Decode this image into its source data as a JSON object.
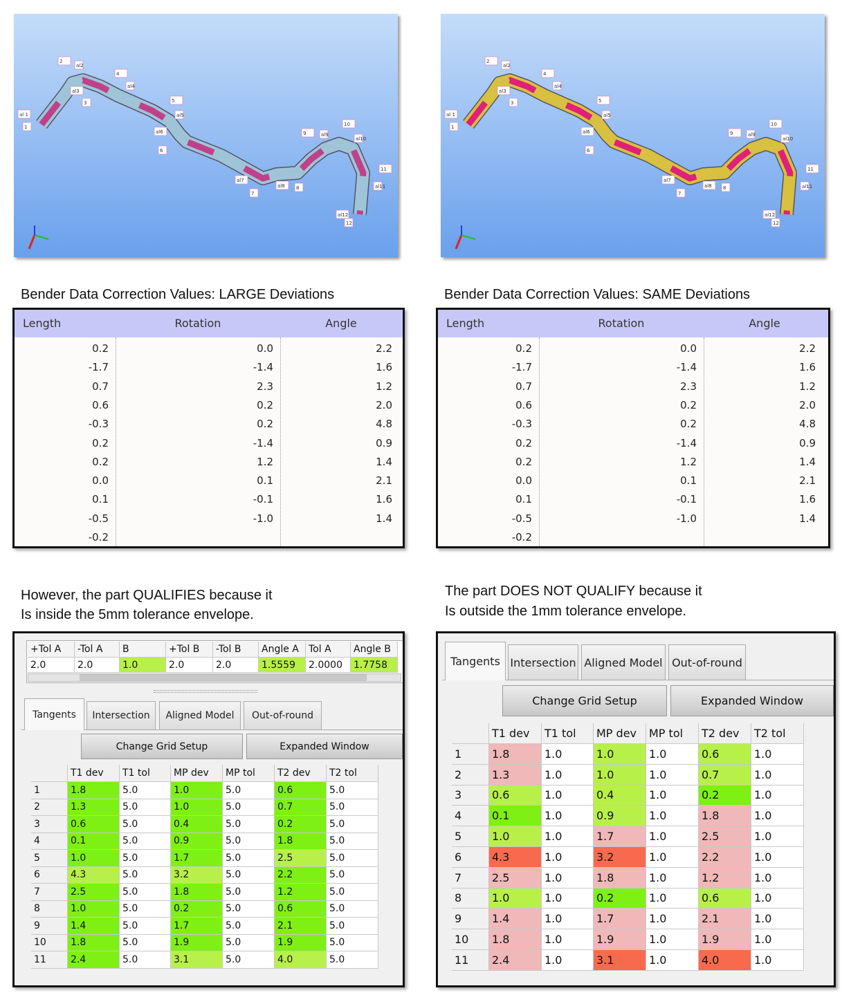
{
  "panels": [
    {
      "view": {
        "labels": [
          "al 1",
          "1",
          "2",
          "al2",
          "al3",
          "3",
          "4",
          "al4",
          "5",
          "al5",
          "al6",
          "6",
          "al7",
          "7",
          "al8",
          "8",
          "9",
          "al9",
          "10",
          "al10",
          "11",
          "al11",
          "al12",
          "12"
        ]
      },
      "caption": "Bender Data Correction Values: LARGE Deviations",
      "corrections": {
        "columns": [
          "Length",
          "Rotation",
          "Angle"
        ],
        "rows": [
          [
            "0.2",
            "0.0",
            "2.2"
          ],
          [
            "-1.7",
            "-1.4",
            "1.6"
          ],
          [
            "0.7",
            "2.3",
            "1.2"
          ],
          [
            "0.6",
            "0.2",
            "2.0"
          ],
          [
            "-0.3",
            "0.2",
            "4.8"
          ],
          [
            "0.2",
            "-1.4",
            "0.9"
          ],
          [
            "0.2",
            "1.2",
            "1.4"
          ],
          [
            "0.0",
            "0.1",
            "2.1"
          ],
          [
            "0.1",
            "-0.1",
            "1.6"
          ],
          [
            "-0.5",
            "-1.0",
            "1.4"
          ],
          [
            "-0.2"
          ]
        ]
      },
      "note": [
        "However, the part QUALIFIES because it",
        "Is inside the 5mm tolerance envelope."
      ],
      "tolerance_strip": {
        "columns": [
          "+Tol A",
          "-Tol A",
          "B",
          "+Tol B",
          "-Tol B",
          "Angle A",
          "Tol A",
          "Angle B"
        ],
        "values": [
          "2.0",
          "2.0",
          "1.0",
          "2.0",
          "2.0",
          "1.5559",
          "2.0000",
          "1.7758"
        ],
        "colors": [
          "#ffffff",
          "#ffffff",
          "#b8f04a",
          "#ffffff",
          "#ffffff",
          "#b8f04a",
          "#ffffff",
          "#b8f04a"
        ]
      },
      "grid": {
        "tabs": [
          "Tangents",
          "Intersection",
          "Aligned Model",
          "Out-of-round"
        ],
        "buttons": [
          "Change Grid Setup",
          "Expanded Window"
        ],
        "columns": [
          "T1 dev",
          "T1 tol",
          "MP dev",
          "MP tol",
          "T2 dev",
          "T2 tol"
        ],
        "rows": [
          {
            "label": "1",
            "cells": [
              "1.8",
              "5.0",
              "1.0",
              "5.0",
              "0.6",
              "5.0"
            ],
            "colors": [
              "#7ef014",
              "#ffffff",
              "#7ef014",
              "#ffffff",
              "#7ef014",
              "#ffffff"
            ]
          },
          {
            "label": "2",
            "cells": [
              "1.3",
              "5.0",
              "1.0",
              "5.0",
              "0.7",
              "5.0"
            ],
            "colors": [
              "#7ef014",
              "#ffffff",
              "#7ef014",
              "#ffffff",
              "#7ef014",
              "#ffffff"
            ]
          },
          {
            "label": "3",
            "cells": [
              "0.6",
              "5.0",
              "0.4",
              "5.0",
              "0.2",
              "5.0"
            ],
            "colors": [
              "#7ef014",
              "#ffffff",
              "#7ef014",
              "#ffffff",
              "#7ef014",
              "#ffffff"
            ]
          },
          {
            "label": "4",
            "cells": [
              "0.1",
              "5.0",
              "0.9",
              "5.0",
              "1.8",
              "5.0"
            ],
            "colors": [
              "#7ef014",
              "#ffffff",
              "#7ef014",
              "#ffffff",
              "#7ef014",
              "#ffffff"
            ]
          },
          {
            "label": "5",
            "cells": [
              "1.0",
              "5.0",
              "1.7",
              "5.0",
              "2.5",
              "5.0"
            ],
            "colors": [
              "#7ef014",
              "#ffffff",
              "#7ef014",
              "#ffffff",
              "#b8f04a",
              "#ffffff"
            ]
          },
          {
            "label": "6",
            "cells": [
              "4.3",
              "5.0",
              "3.2",
              "5.0",
              "2.2",
              "5.0"
            ],
            "colors": [
              "#b8f04a",
              "#ffffff",
              "#b8f04a",
              "#ffffff",
              "#7ef014",
              "#ffffff"
            ]
          },
          {
            "label": "7",
            "cells": [
              "2.5",
              "5.0",
              "1.8",
              "5.0",
              "1.2",
              "5.0"
            ],
            "colors": [
              "#7ef014",
              "#ffffff",
              "#7ef014",
              "#ffffff",
              "#7ef014",
              "#ffffff"
            ]
          },
          {
            "label": "8",
            "cells": [
              "1.0",
              "5.0",
              "0.2",
              "5.0",
              "0.6",
              "5.0"
            ],
            "colors": [
              "#7ef014",
              "#ffffff",
              "#7ef014",
              "#ffffff",
              "#7ef014",
              "#ffffff"
            ]
          },
          {
            "label": "9",
            "cells": [
              "1.4",
              "5.0",
              "1.7",
              "5.0",
              "2.1",
              "5.0"
            ],
            "colors": [
              "#7ef014",
              "#ffffff",
              "#7ef014",
              "#ffffff",
              "#7ef014",
              "#ffffff"
            ]
          },
          {
            "label": "10",
            "cells": [
              "1.8",
              "5.0",
              "1.9",
              "5.0",
              "1.9",
              "5.0"
            ],
            "colors": [
              "#7ef014",
              "#ffffff",
              "#7ef014",
              "#ffffff",
              "#7ef014",
              "#ffffff"
            ]
          },
          {
            "label": "11",
            "cells": [
              "2.4",
              "5.0",
              "3.1",
              "5.0",
              "4.0",
              "5.0"
            ],
            "colors": [
              "#7ef014",
              "#ffffff",
              "#b8f04a",
              "#ffffff",
              "#b8f04a",
              "#ffffff"
            ]
          }
        ]
      }
    },
    {
      "view": {
        "labels": [
          "al 1",
          "1",
          "2",
          "al2",
          "al3",
          "3",
          "4",
          "al4",
          "5",
          "al5",
          "al6",
          "6",
          "al7",
          "7",
          "al8",
          "8",
          "9",
          "al9",
          "10",
          "al10",
          "11",
          "al11",
          "al12",
          "12"
        ]
      },
      "caption": "Bender Data Correction Values: SAME Deviations",
      "corrections": {
        "columns": [
          "Length",
          "Rotation",
          "Angle"
        ],
        "rows": [
          [
            "0.2",
            "0.0",
            "2.2"
          ],
          [
            "-1.7",
            "-1.4",
            "1.6"
          ],
          [
            "0.7",
            "2.3",
            "1.2"
          ],
          [
            "0.6",
            "0.2",
            "2.0"
          ],
          [
            "-0.3",
            "0.2",
            "4.8"
          ],
          [
            "0.2",
            "-1.4",
            "0.9"
          ],
          [
            "0.2",
            "1.2",
            "1.4"
          ],
          [
            "0.0",
            "0.1",
            "2.1"
          ],
          [
            "0.1",
            "-0.1",
            "1.6"
          ],
          [
            "-0.5",
            "-1.0",
            "1.4"
          ],
          [
            "-0.2"
          ]
        ]
      },
      "note": [
        "The part DOES NOT QUALIFY because it",
        "Is outside the 1mm tolerance envelope."
      ],
      "grid": {
        "tabs": [
          "Tangents",
          "Intersection",
          "Aligned Model",
          "Out-of-round"
        ],
        "buttons": [
          "Change Grid Setup",
          "Expanded Window"
        ],
        "columns": [
          "T1 dev",
          "T1 tol",
          "MP dev",
          "MP tol",
          "T2 dev",
          "T2 tol"
        ],
        "rows": [
          {
            "label": "1",
            "cells": [
              "1.8",
              "1.0",
              "1.0",
              "1.0",
              "0.6",
              "1.0"
            ],
            "colors": [
              "#f0b8b8",
              "#ffffff",
              "#b8f04a",
              "#ffffff",
              "#b8f04a",
              "#ffffff"
            ]
          },
          {
            "label": "2",
            "cells": [
              "1.3",
              "1.0",
              "1.0",
              "1.0",
              "0.7",
              "1.0"
            ],
            "colors": [
              "#f0b8b8",
              "#ffffff",
              "#b8f04a",
              "#ffffff",
              "#b8f04a",
              "#ffffff"
            ]
          },
          {
            "label": "3",
            "cells": [
              "0.6",
              "1.0",
              "0.4",
              "1.0",
              "0.2",
              "1.0"
            ],
            "colors": [
              "#b8f04a",
              "#ffffff",
              "#b8f04a",
              "#ffffff",
              "#7ef014",
              "#ffffff"
            ]
          },
          {
            "label": "4",
            "cells": [
              "0.1",
              "1.0",
              "0.9",
              "1.0",
              "1.8",
              "1.0"
            ],
            "colors": [
              "#7ef014",
              "#ffffff",
              "#b8f04a",
              "#ffffff",
              "#f0b8b8",
              "#ffffff"
            ]
          },
          {
            "label": "5",
            "cells": [
              "1.0",
              "1.0",
              "1.7",
              "1.0",
              "2.5",
              "1.0"
            ],
            "colors": [
              "#b8f04a",
              "#ffffff",
              "#f0b8b8",
              "#ffffff",
              "#f0b8b8",
              "#ffffff"
            ]
          },
          {
            "label": "6",
            "cells": [
              "4.3",
              "1.0",
              "3.2",
              "1.0",
              "2.2",
              "1.0"
            ],
            "colors": [
              "#f86a4e",
              "#ffffff",
              "#f86a4e",
              "#ffffff",
              "#f0b8b8",
              "#ffffff"
            ]
          },
          {
            "label": "7",
            "cells": [
              "2.5",
              "1.0",
              "1.8",
              "1.0",
              "1.2",
              "1.0"
            ],
            "colors": [
              "#f0b8b8",
              "#ffffff",
              "#f0b8b8",
              "#ffffff",
              "#f0b8b8",
              "#ffffff"
            ]
          },
          {
            "label": "8",
            "cells": [
              "1.0",
              "1.0",
              "0.2",
              "1.0",
              "0.6",
              "1.0"
            ],
            "colors": [
              "#b8f04a",
              "#ffffff",
              "#7ef014",
              "#ffffff",
              "#b8f04a",
              "#ffffff"
            ]
          },
          {
            "label": "9",
            "cells": [
              "1.4",
              "1.0",
              "1.7",
              "1.0",
              "2.1",
              "1.0"
            ],
            "colors": [
              "#f0b8b8",
              "#ffffff",
              "#f0b8b8",
              "#ffffff",
              "#f0b8b8",
              "#ffffff"
            ]
          },
          {
            "label": "10",
            "cells": [
              "1.8",
              "1.0",
              "1.9",
              "1.0",
              "1.9",
              "1.0"
            ],
            "colors": [
              "#f0b8b8",
              "#ffffff",
              "#f0b8b8",
              "#ffffff",
              "#f0b8b8",
              "#ffffff"
            ]
          },
          {
            "label": "11",
            "cells": [
              "2.4",
              "1.0",
              "3.1",
              "1.0",
              "4.0",
              "1.0"
            ],
            "colors": [
              "#f0b8b8",
              "#ffffff",
              "#f86a4e",
              "#ffffff",
              "#f86a4e",
              "#ffffff"
            ]
          }
        ]
      }
    }
  ]
}
